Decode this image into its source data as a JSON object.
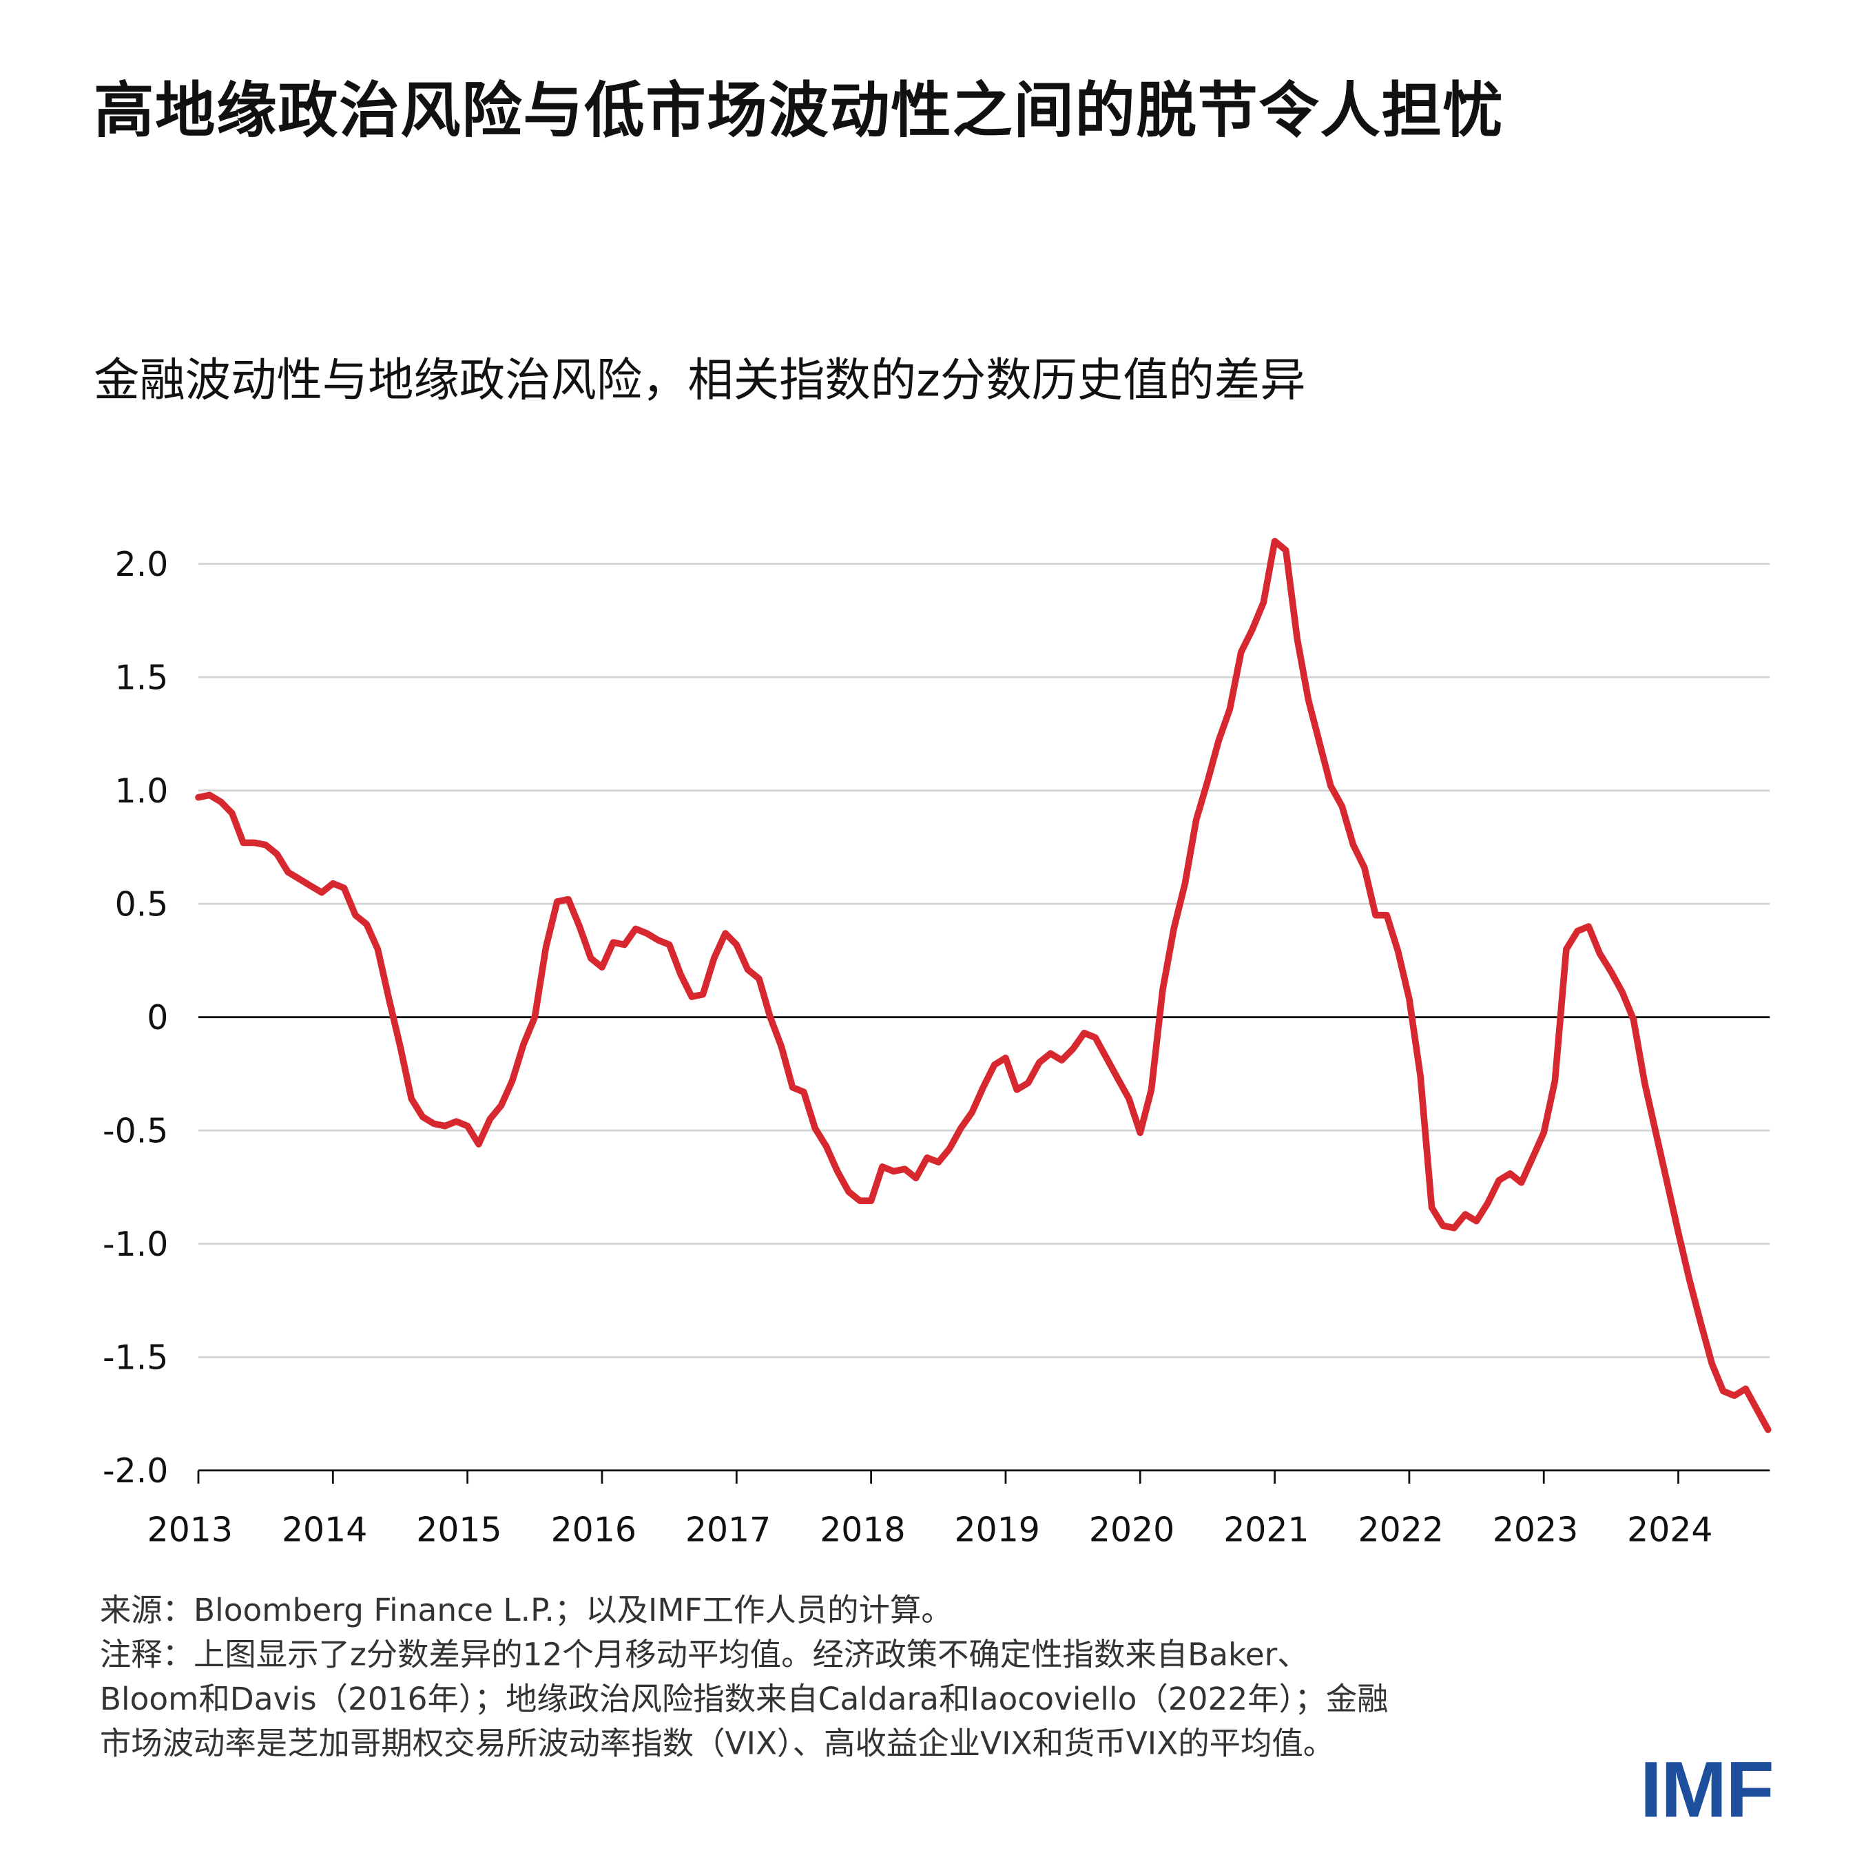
{
  "title": "高地缘政治风险与低市场波动性之间的脱节令人担忧",
  "subtitle": "金融波动性与地缘政治风险，相关指数的z分数历史值的差异",
  "notes": {
    "source": "来源：Bloomberg Finance L.P.；以及IMF工作人员的计算。",
    "note_lines": [
      "注释：上图显示了z分数差异的12个月移动平均值。经济政策不确定性指数来自Baker、",
      "Bloom和Davis（2016年）；地缘政治风险指数来自Caldara和Iaocoviello（2022年）；金融",
      "市场波动率是芝加哥期权交易所波动率指数（VIX）、高收益企业VIX和货币VIX的平均值。"
    ]
  },
  "logo": "IMF",
  "chart_data": {
    "type": "line",
    "title": "金融波动性与地缘政治风险，相关指数的z分数历史值的差异",
    "xlabel": "",
    "ylabel": "",
    "xlim": [
      2013,
      2024.75
    ],
    "ylim": [
      -2.0,
      2.0
    ],
    "x_ticks": [
      "2013",
      "2014",
      "2015",
      "2016",
      "2017",
      "2018",
      "2019",
      "2020",
      "2021",
      "2022",
      "2023",
      "2024"
    ],
    "y_ticks": [
      2.0,
      1.5,
      1.0,
      0.5,
      0,
      -0.5,
      -1.0,
      -1.5,
      -2.0
    ],
    "y_tick_labels": [
      "2.0",
      "1.5",
      "1.0",
      "0.5",
      "0",
      "-0.5",
      "-1.0",
      "-1.5",
      "-2.0"
    ],
    "grid": "horizontal",
    "line_color": "#d7282f",
    "series": [
      {
        "frequency": "monthly",
        "values_by_year": {
          "2013": [
            0.97,
            0.98,
            0.95,
            0.9,
            0.77,
            0.77,
            0.76,
            0.72,
            0.64,
            0.61,
            0.58,
            0.55
          ],
          "2014": [
            0.59,
            0.57,
            0.45,
            0.41,
            0.3,
            0.08,
            -0.13,
            -0.36,
            -0.44,
            -0.47,
            -0.48,
            -0.46
          ],
          "2015": [
            -0.48,
            -0.56,
            -0.45,
            -0.39,
            -0.28,
            -0.12,
            0.0,
            0.31,
            0.51,
            0.52,
            0.4,
            0.26
          ],
          "2016": [
            0.22,
            0.33,
            0.32,
            0.39,
            0.37,
            0.34,
            0.32,
            0.19,
            0.09,
            0.1,
            0.26,
            0.37
          ],
          "2017": [
            0.32,
            0.21,
            0.17,
            0.0,
            -0.13,
            -0.31,
            -0.33,
            -0.49,
            -0.57,
            -0.68,
            -0.77,
            -0.81
          ],
          "2018": [
            -0.81,
            -0.66,
            -0.68,
            -0.67,
            -0.71,
            -0.62,
            -0.64,
            -0.58,
            -0.49,
            -0.42,
            -0.31,
            -0.21
          ],
          "2019": [
            -0.18,
            -0.32,
            -0.29,
            -0.2,
            -0.16,
            -0.19,
            -0.14,
            -0.07,
            -0.09,
            -0.18,
            -0.27,
            -0.36
          ],
          "2020": [
            -0.51,
            -0.32,
            0.12,
            0.39,
            0.59,
            0.87,
            1.04,
            1.22,
            1.36,
            1.61,
            1.71,
            1.83
          ],
          "2021": [
            2.1,
            2.06,
            1.67,
            1.4,
            1.21,
            1.02,
            0.93,
            0.76,
            0.66,
            0.45,
            0.45,
            0.29
          ],
          "2022": [
            0.08,
            -0.26,
            -0.84,
            -0.92,
            -0.93,
            -0.87,
            -0.9,
            -0.82,
            -0.72,
            -0.69,
            -0.73,
            -0.62
          ],
          "2023": [
            -0.51,
            -0.28,
            0.3,
            0.38,
            0.4,
            0.28,
            0.2,
            0.11,
            -0.01,
            -0.29,
            -0.51,
            -0.73
          ],
          "2024": [
            -0.95,
            -1.16,
            -1.35,
            -1.53,
            -1.65,
            -1.67,
            -1.64,
            -1.73,
            -1.82
          ]
        }
      }
    ]
  }
}
